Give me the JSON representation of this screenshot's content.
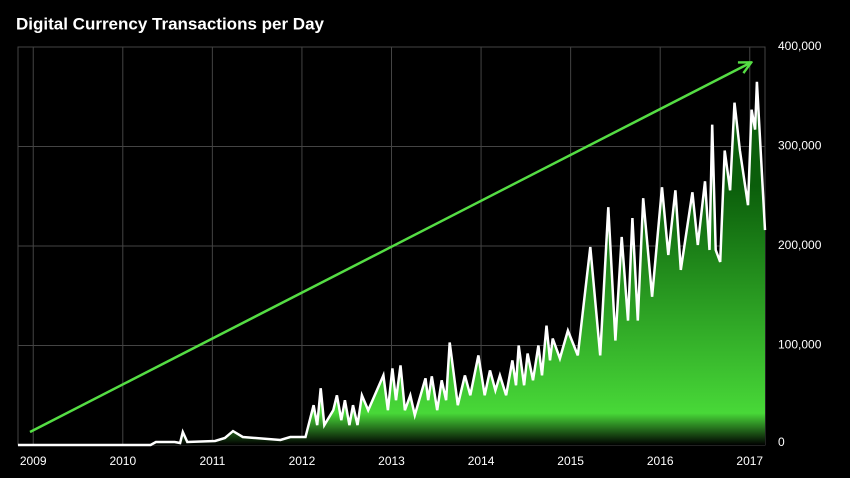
{
  "chart_data": {
    "type": "area",
    "title": "Digital Currency Transactions per Day",
    "x": [
      2008.83,
      2010.31,
      2010.37,
      2010.58,
      2010.64,
      2010.67,
      2010.72,
      2011.03,
      2011.14,
      2011.23,
      2011.34,
      2011.76,
      2011.87,
      2012.04,
      2012.13,
      2012.17,
      2012.21,
      2012.25,
      2012.35,
      2012.39,
      2012.44,
      2012.48,
      2012.53,
      2012.57,
      2012.62,
      2012.67,
      2012.74,
      2012.91,
      2012.96,
      2013.01,
      2013.05,
      2013.1,
      2013.15,
      2013.21,
      2013.26,
      2013.38,
      2013.41,
      2013.45,
      2013.51,
      2013.56,
      2013.61,
      2013.65,
      2013.74,
      2013.82,
      2013.88,
      2013.97,
      2014.04,
      2014.1,
      2014.16,
      2014.21,
      2014.28,
      2014.35,
      2014.39,
      2014.42,
      2014.48,
      2014.52,
      2014.58,
      2014.64,
      2014.68,
      2014.73,
      2014.77,
      2014.8,
      2014.88,
      2014.97,
      2015.08,
      2015.22,
      2015.33,
      2015.42,
      2015.5,
      2015.57,
      2015.64,
      2015.69,
      2015.75,
      2015.81,
      2015.91,
      2016.02,
      2016.09,
      2016.17,
      2016.23,
      2016.36,
      2016.42,
      2016.5,
      2016.55,
      2016.58,
      2016.62,
      2016.67,
      2016.72,
      2016.78,
      2016.83,
      2016.89,
      2016.98,
      2017.02,
      2017.06,
      2017.08,
      2017.17
    ],
    "series": [
      {
        "name": "Transactions per day",
        "color": "#ffffff",
        "fill_colors": [
          "#0b5e0b",
          "#48d838",
          "#000000"
        ],
        "values": [
          0,
          0,
          3000,
          3000,
          2000,
          13000,
          3000,
          4000,
          7000,
          14000,
          8000,
          5000,
          8000,
          8000,
          40000,
          20000,
          57000,
          20000,
          35000,
          50000,
          25000,
          45000,
          20000,
          40000,
          20000,
          50000,
          35000,
          70000,
          35000,
          77000,
          45000,
          80000,
          35000,
          50000,
          30000,
          67000,
          45000,
          69000,
          35000,
          65000,
          45000,
          103000,
          40000,
          70000,
          50000,
          90000,
          50000,
          75000,
          55000,
          70000,
          50000,
          85000,
          60000,
          100000,
          60000,
          92000,
          65000,
          100000,
          70000,
          120000,
          85000,
          107000,
          87000,
          115000,
          90000,
          199000,
          90000,
          239000,
          105000,
          209000,
          125000,
          228000,
          125000,
          248000,
          149000,
          259000,
          191000,
          256000,
          176000,
          254000,
          201000,
          265000,
          196000,
          322000,
          196000,
          184000,
          296000,
          256000,
          344000,
          296000,
          241000,
          337000,
          317000,
          365000,
          216000
        ]
      }
    ],
    "xlim": [
      2008.83,
      2017.17
    ],
    "xticks": [
      2009,
      2010,
      2011,
      2012,
      2013,
      2014,
      2015,
      2016,
      2017
    ],
    "ylim": [
      0,
      400000
    ],
    "yticks": [
      0,
      {
        "value": 100000,
        "label": "100,000"
      },
      {
        "value": 200000,
        "label": "200,000"
      },
      {
        "value": 300000,
        "label": "300,000"
      },
      {
        "value": 400000,
        "label": "400,000"
      }
    ],
    "grid": true,
    "y_axis_side": "right"
  }
}
